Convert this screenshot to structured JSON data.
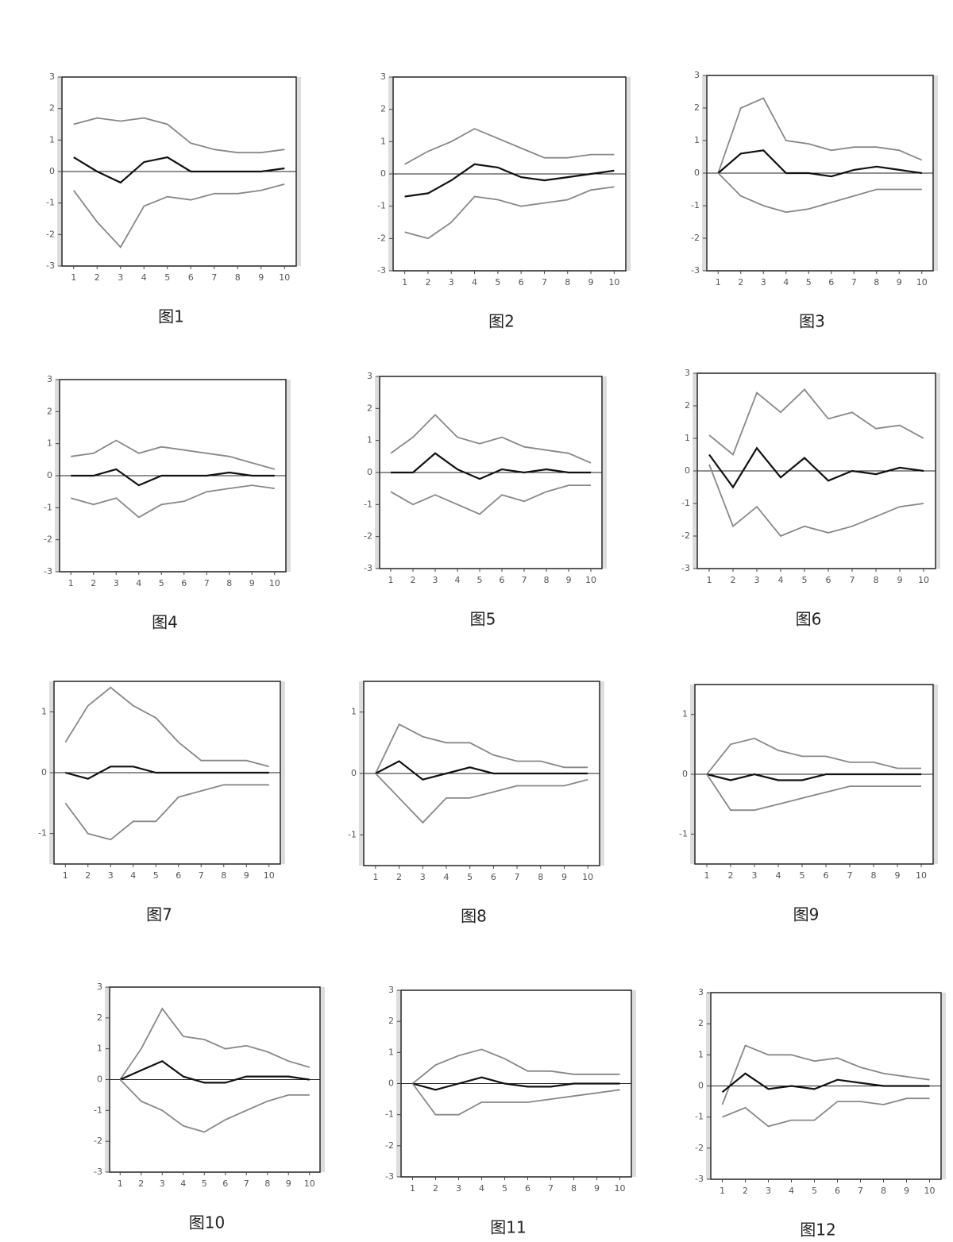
{
  "chart_data": [
    {
      "type": "line",
      "caption": "图1",
      "categories": [
        1,
        2,
        3,
        4,
        5,
        6,
        7,
        8,
        9,
        10
      ],
      "ylim": [
        -3,
        3
      ],
      "yticks": [
        -3,
        -2,
        -1,
        0,
        1,
        2,
        3
      ],
      "series": [
        {
          "color": "#888",
          "values": [
            1.5,
            1.7,
            1.6,
            1.7,
            1.5,
            0.9,
            0.7,
            0.6,
            0.6,
            0.7
          ]
        },
        {
          "color": "#111",
          "values": [
            0.45,
            0,
            -0.35,
            0.3,
            0.45,
            0,
            0,
            0,
            0,
            0.1
          ]
        },
        {
          "color": "#888",
          "values": [
            -0.6,
            -1.6,
            -2.4,
            -1.1,
            -0.8,
            -0.9,
            -0.7,
            -0.7,
            -0.6,
            -0.4
          ]
        }
      ]
    },
    {
      "type": "line",
      "caption": "图2",
      "categories": [
        1,
        2,
        3,
        4,
        5,
        6,
        7,
        8,
        9,
        10
      ],
      "ylim": [
        -3,
        3
      ],
      "yticks": [
        -3,
        -2,
        -1,
        0,
        1,
        2,
        3
      ],
      "series": [
        {
          "color": "#888",
          "values": [
            0.3,
            0.7,
            1,
            1.4,
            1.1,
            0.8,
            0.5,
            0.5,
            0.6,
            0.6
          ]
        },
        {
          "color": "#111",
          "values": [
            -0.7,
            -0.6,
            -0.2,
            0.3,
            0.2,
            -0.1,
            -0.2,
            -0.1,
            0,
            0.1
          ]
        },
        {
          "color": "#888",
          "values": [
            -1.8,
            -2,
            -1.5,
            -0.7,
            -0.8,
            -1,
            -0.9,
            -0.8,
            -0.5,
            -0.4
          ]
        }
      ]
    },
    {
      "type": "line",
      "caption": "图3",
      "categories": [
        1,
        2,
        3,
        4,
        5,
        6,
        7,
        8,
        9,
        10
      ],
      "ylim": [
        -3,
        3
      ],
      "yticks": [
        -3,
        -2,
        -1,
        0,
        1,
        2,
        3
      ],
      "series": [
        {
          "color": "#888",
          "values": [
            0,
            2,
            2.3,
            1,
            0.9,
            0.7,
            0.8,
            0.8,
            0.7,
            0.4
          ]
        },
        {
          "color": "#111",
          "values": [
            0,
            0.6,
            0.7,
            0,
            0,
            -0.1,
            0.1,
            0.2,
            0.1,
            0
          ]
        },
        {
          "color": "#888",
          "values": [
            0,
            -0.7,
            -1,
            -1.2,
            -1.1,
            -0.9,
            -0.7,
            -0.5,
            -0.5,
            -0.5
          ]
        }
      ]
    },
    {
      "type": "line",
      "caption": "图4",
      "categories": [
        1,
        2,
        3,
        4,
        5,
        6,
        7,
        8,
        9,
        10
      ],
      "ylim": [
        -3,
        3
      ],
      "yticks": [
        -3,
        -2,
        -1,
        0,
        1,
        2,
        3
      ],
      "series": [
        {
          "color": "#888",
          "values": [
            0.6,
            0.7,
            1.1,
            0.7,
            0.9,
            0.8,
            0.7,
            0.6,
            0.4,
            0.2
          ]
        },
        {
          "color": "#111",
          "values": [
            0,
            0,
            0.2,
            -0.3,
            0,
            0,
            0,
            0.1,
            0,
            0
          ]
        },
        {
          "color": "#888",
          "values": [
            -0.7,
            -0.9,
            -0.7,
            -1.3,
            -0.9,
            -0.8,
            -0.5,
            -0.4,
            -0.3,
            -0.4
          ]
        }
      ]
    },
    {
      "type": "line",
      "caption": "图5",
      "categories": [
        1,
        2,
        3,
        4,
        5,
        6,
        7,
        8,
        9,
        10
      ],
      "ylim": [
        -3,
        3
      ],
      "yticks": [
        -3,
        -2,
        -1,
        0,
        1,
        2,
        3
      ],
      "series": [
        {
          "color": "#888",
          "values": [
            0.6,
            1.1,
            1.8,
            1.1,
            0.9,
            1.1,
            0.8,
            0.7,
            0.6,
            0.3
          ]
        },
        {
          "color": "#111",
          "values": [
            0,
            0,
            0.6,
            0.1,
            -0.2,
            0.1,
            0,
            0.1,
            0,
            0
          ]
        },
        {
          "color": "#888",
          "values": [
            -0.6,
            -1,
            -0.7,
            -1,
            -1.3,
            -0.7,
            -0.9,
            -0.6,
            -0.4,
            -0.4
          ]
        }
      ]
    },
    {
      "type": "line",
      "caption": "图6",
      "categories": [
        1,
        2,
        3,
        4,
        5,
        6,
        7,
        8,
        9,
        10
      ],
      "ylim": [
        -3,
        3
      ],
      "yticks": [
        -3,
        -2,
        -1,
        0,
        1,
        2,
        3
      ],
      "series": [
        {
          "color": "#888",
          "values": [
            1.1,
            0.5,
            2.4,
            1.8,
            2.5,
            1.6,
            1.8,
            1.3,
            1.4,
            1
          ]
        },
        {
          "color": "#111",
          "values": [
            0.5,
            -0.5,
            0.7,
            -0.2,
            0.4,
            -0.3,
            0,
            -0.1,
            0.1,
            0
          ]
        },
        {
          "color": "#888",
          "values": [
            0.2,
            -1.7,
            -1.1,
            -2,
            -1.7,
            -1.9,
            -1.7,
            -1.4,
            -1.1,
            -1
          ]
        }
      ]
    },
    {
      "type": "line",
      "caption": "图7",
      "categories": [
        1,
        2,
        3,
        4,
        5,
        6,
        7,
        8,
        9,
        10
      ],
      "ylim": [
        -1.5,
        1.5
      ],
      "yticks": [
        -1,
        0,
        1
      ],
      "series": [
        {
          "color": "#888",
          "values": [
            0.5,
            1.1,
            1.4,
            1.1,
            0.9,
            0.5,
            0.2,
            0.2,
            0.2,
            0.1
          ]
        },
        {
          "color": "#111",
          "values": [
            0,
            -0.1,
            0.1,
            0.1,
            0,
            0,
            0,
            0,
            0,
            0
          ]
        },
        {
          "color": "#888",
          "values": [
            -0.5,
            -1,
            -1.1,
            -0.8,
            -0.8,
            -0.4,
            -0.3,
            -0.2,
            -0.2,
            -0.2
          ]
        }
      ]
    },
    {
      "type": "line",
      "caption": "图8",
      "categories": [
        1,
        2,
        3,
        4,
        5,
        6,
        7,
        8,
        9,
        10
      ],
      "ylim": [
        -1.5,
        1.5
      ],
      "yticks": [
        -1,
        0,
        1
      ],
      "series": [
        {
          "color": "#888",
          "values": [
            0,
            0.8,
            0.6,
            0.5,
            0.5,
            0.3,
            0.2,
            0.2,
            0.1,
            0.1
          ]
        },
        {
          "color": "#111",
          "values": [
            0,
            0.2,
            -0.1,
            0,
            0.1,
            0,
            0,
            0,
            0,
            0
          ]
        },
        {
          "color": "#888",
          "values": [
            0,
            -0.4,
            -0.8,
            -0.4,
            -0.4,
            -0.3,
            -0.2,
            -0.2,
            -0.2,
            -0.1
          ]
        }
      ]
    },
    {
      "type": "line",
      "caption": "图9",
      "categories": [
        1,
        2,
        3,
        4,
        5,
        6,
        7,
        8,
        9,
        10
      ],
      "ylim": [
        -1.5,
        1.5
      ],
      "yticks": [
        -1,
        0,
        1
      ],
      "series": [
        {
          "color": "#888",
          "values": [
            0,
            0.5,
            0.6,
            0.4,
            0.3,
            0.3,
            0.2,
            0.2,
            0.1,
            0.1
          ]
        },
        {
          "color": "#111",
          "values": [
            0,
            -0.1,
            0,
            -0.1,
            -0.1,
            0,
            0,
            0,
            0,
            0
          ]
        },
        {
          "color": "#888",
          "values": [
            0,
            -0.6,
            -0.6,
            -0.5,
            -0.4,
            -0.3,
            -0.2,
            -0.2,
            -0.2,
            -0.2
          ]
        }
      ]
    },
    {
      "type": "line",
      "caption": "图10",
      "categories": [
        1,
        2,
        3,
        4,
        5,
        6,
        7,
        8,
        9,
        10
      ],
      "ylim": [
        -3,
        3
      ],
      "yticks": [
        -3,
        -2,
        -1,
        0,
        1,
        2,
        3
      ],
      "series": [
        {
          "color": "#888",
          "values": [
            0,
            1,
            2.3,
            1.4,
            1.3,
            1,
            1.1,
            0.9,
            0.6,
            0.4
          ]
        },
        {
          "color": "#111",
          "values": [
            0,
            0.3,
            0.6,
            0.1,
            -0.1,
            -0.1,
            0.1,
            0.1,
            0.1,
            0
          ]
        },
        {
          "color": "#888",
          "values": [
            0,
            -0.7,
            -1,
            -1.5,
            -1.7,
            -1.3,
            -1,
            -0.7,
            -0.5,
            -0.5
          ]
        }
      ]
    },
    {
      "type": "line",
      "caption": "图11",
      "categories": [
        1,
        2,
        3,
        4,
        5,
        6,
        7,
        8,
        9,
        10
      ],
      "ylim": [
        -3,
        3
      ],
      "yticks": [
        -3,
        -2,
        -1,
        0,
        1,
        2,
        3
      ],
      "series": [
        {
          "color": "#888",
          "values": [
            0,
            0.6,
            0.9,
            1.1,
            0.8,
            0.4,
            0.4,
            0.3,
            0.3,
            0.3
          ]
        },
        {
          "color": "#111",
          "values": [
            0,
            -0.2,
            0,
            0.2,
            0,
            -0.1,
            -0.1,
            0,
            0,
            0
          ]
        },
        {
          "color": "#888",
          "values": [
            0,
            -1,
            -1,
            -0.6,
            -0.6,
            -0.6,
            -0.5,
            -0.4,
            -0.3,
            -0.2
          ]
        }
      ]
    },
    {
      "type": "line",
      "caption": "图12",
      "categories": [
        1,
        2,
        3,
        4,
        5,
        6,
        7,
        8,
        9,
        10
      ],
      "ylim": [
        -3,
        3
      ],
      "yticks": [
        -3,
        -2,
        -1,
        0,
        1,
        2,
        3
      ],
      "series": [
        {
          "color": "#888",
          "values": [
            -0.6,
            1.3,
            1,
            1,
            0.8,
            0.9,
            0.6,
            0.4,
            0.3,
            0.2
          ]
        },
        {
          "color": "#111",
          "values": [
            -0.2,
            0.4,
            -0.1,
            0,
            -0.1,
            0.2,
            0.1,
            0,
            0,
            0
          ]
        },
        {
          "color": "#888",
          "values": [
            -1,
            -0.7,
            -1.3,
            -1.1,
            -1.1,
            -0.5,
            -0.5,
            -0.6,
            -0.4,
            -0.4
          ]
        }
      ]
    }
  ]
}
